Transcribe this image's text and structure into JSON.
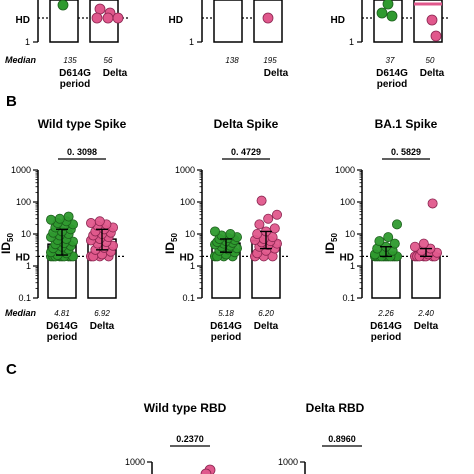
{
  "panels": [
    {
      "letter": "B",
      "median_label": "Median",
      "subplots": [
        {
          "title": "Wild type Spike",
          "pvalue": "0. 3098",
          "ylabel": "ID",
          "ylabel_sub": "50",
          "x_labels": [
            "D614G\nperiod",
            "Delta"
          ],
          "medians": [
            "4.81",
            "6.92"
          ]
        },
        {
          "title": "Delta Spike",
          "pvalue": "0. 4729",
          "ylabel": "ID",
          "ylabel_sub": "50",
          "x_labels": [
            "D614G\nperiod",
            "Delta"
          ],
          "medians": [
            "5.18",
            "6.20"
          ]
        },
        {
          "title": "BA.1 Spike",
          "pvalue": "0. 5829",
          "ylabel": "ID",
          "ylabel_sub": "50",
          "x_labels": [
            "D614G\nperiod",
            "Delta"
          ],
          "medians": [
            "2.26",
            "2.40"
          ]
        }
      ]
    },
    {
      "letter": "C",
      "subplots": [
        {
          "title": "Wild type RBD",
          "pvalue": "0.2370"
        },
        {
          "title": "Delta RBD",
          "pvalue": "0.8960"
        }
      ]
    }
  ],
  "top_partial": {
    "median_label": "Median",
    "medians": [
      [
        "135",
        "56"
      ],
      [
        "138",
        "195"
      ],
      [
        "37",
        "50"
      ]
    ],
    "x_labels": [
      "D614G\nperiod",
      "Delta"
    ]
  },
  "hd_label": "HD",
  "colors": {
    "d614g": "#2e9a2e",
    "delta": "#e0588c",
    "axis": "#000000"
  },
  "chart_data": [
    {
      "type": "scatter",
      "title": "Wild type Spike",
      "ylabel": "ID50",
      "yscale": "log",
      "ylim": [
        0.1,
        1000
      ],
      "y_ticks": [
        "0.1",
        "1",
        "10",
        "100",
        "1000"
      ],
      "categories": [
        "D614G period",
        "Delta"
      ],
      "hd_threshold": 2,
      "bar_values": [
        4.81,
        6.92
      ],
      "series": [
        {
          "name": "D614G period",
          "values": [
            2,
            2,
            2,
            2,
            2,
            2,
            2,
            2,
            2,
            2.2,
            2.5,
            2.7,
            3,
            3.3,
            3.6,
            4,
            4.3,
            4.8,
            5.2,
            5.8,
            6.5,
            7,
            8,
            9,
            10,
            11,
            12,
            14,
            16,
            18,
            20,
            22,
            25,
            28,
            30,
            35
          ]
        },
        {
          "name": "Delta",
          "values": [
            2,
            2,
            2,
            2,
            2.3,
            2.8,
            3.2,
            3.7,
            4.3,
            5,
            5.6,
            6.3,
            7,
            8,
            9,
            10,
            11,
            12,
            14,
            16,
            18,
            20,
            22,
            25
          ]
        }
      ]
    },
    {
      "type": "scatter",
      "title": "Delta Spike",
      "ylabel": "ID50",
      "yscale": "log",
      "ylim": [
        0.1,
        1000
      ],
      "y_ticks": [
        "0.1",
        "1",
        "10",
        "100",
        "1000"
      ],
      "categories": [
        "D614G period",
        "Delta"
      ],
      "hd_threshold": 2,
      "bar_values": [
        5.18,
        6.2
      ],
      "series": [
        {
          "name": "D614G period",
          "values": [
            2,
            2,
            2,
            2,
            2.3,
            2.7,
            3,
            3.3,
            3.6,
            4,
            4.3,
            4.7,
            5,
            5.3,
            5.6,
            6,
            6.5,
            7,
            7.5,
            8,
            9,
            10,
            12
          ]
        },
        {
          "name": "Delta",
          "values": [
            2,
            2,
            2,
            2.5,
            3,
            3.5,
            4,
            4.5,
            5,
            5.5,
            6,
            6.5,
            7,
            8,
            10,
            12,
            15,
            20,
            30,
            40,
            110
          ]
        }
      ]
    },
    {
      "type": "scatter",
      "title": "BA.1 Spike",
      "ylabel": "ID50",
      "yscale": "log",
      "ylim": [
        0.1,
        1000
      ],
      "y_ticks": [
        "0.1",
        "1",
        "10",
        "100",
        "1000"
      ],
      "categories": [
        "D614G period",
        "Delta"
      ],
      "hd_threshold": 2,
      "bar_values": [
        2.26,
        2.4
      ],
      "series": [
        {
          "name": "D614G period",
          "values": [
            2,
            2,
            2,
            2,
            2,
            2,
            2,
            2,
            2,
            2,
            2,
            2.3,
            2.6,
            3,
            3.5,
            4,
            5,
            6,
            8,
            20
          ]
        },
        {
          "name": "Delta",
          "values": [
            2,
            2,
            2,
            2,
            2,
            2,
            2,
            2.3,
            2.6,
            3,
            3.5,
            4,
            5,
            90
          ]
        }
      ]
    }
  ]
}
